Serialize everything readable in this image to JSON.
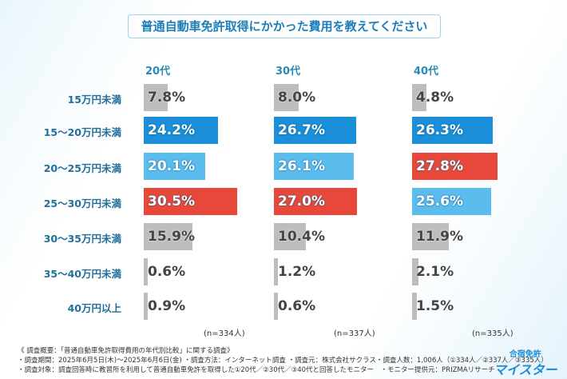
{
  "chart_data": {
    "type": "bar",
    "title": "普通自動車免許取得にかかった費用を教えてください",
    "categories": [
      "15万円未満",
      "15～20万円未満",
      "20～25万円未満",
      "25～30万円未満",
      "30～35万円未満",
      "35～40万円未満",
      "40万円以上"
    ],
    "series": [
      {
        "name": "20代",
        "values": [
          7.8,
          24.2,
          20.1,
          30.5,
          15.9,
          0.6,
          0.9
        ],
        "n": "(n=334人)"
      },
      {
        "name": "30代",
        "values": [
          8.0,
          26.7,
          26.1,
          27.0,
          10.4,
          1.2,
          0.6
        ],
        "n": "(n=337人)"
      },
      {
        "name": "40代",
        "values": [
          4.8,
          26.3,
          27.8,
          25.6,
          11.9,
          2.1,
          1.5
        ],
        "n": "(n=335人)"
      }
    ],
    "unit": "%",
    "colors": {
      "first": "#e8483a",
      "second": "#1b8fd9",
      "third": "#5bbdee",
      "other": "#bdbdbd"
    }
  },
  "footer": [
    "《 調査概要：「普通自動車免許取得費用の年代別比較」に関する調査》",
    "・調査期間：2025年6月5日(木)～2025年6月6日(金) ・調査方法：インターネット調査 ・調査元：株式会社サクラス・調査人数：1,006人（①334人／②337人／③335人）",
    "・調査対象：調査回答時に教習所を利用して普通自動車免許を取得した①20代／②30代／③40代と回答したモニター　・モニター提供元：PRIZMAリサーチ"
  ],
  "logo": {
    "line1": "合宿免許",
    "line2": "マイスター"
  }
}
